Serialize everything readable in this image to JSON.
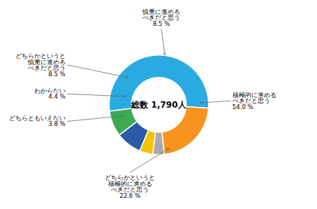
{
  "chart_data": {
    "type": "pie",
    "categories": [
      "積極的に進める\nべきだと思う",
      "どちらかというと\n積極的に進める\nべきだと思う",
      "どちらともいえない",
      "わからない",
      "どちらかというと\n慎重に進める\nべきだと思う",
      "慎重に進める\nべきだと思う"
    ],
    "values": [
      54.0,
      22.6,
      3.8,
      4.4,
      8.5,
      8.5
    ],
    "value_labels": [
      "54.0 %",
      "22.6 %",
      "3.8 %",
      "4.4 %",
      "8.5 %",
      "8.5 %"
    ],
    "colors": [
      "#29ABE2",
      "#F7941D",
      "#AAAAAA",
      "#F5C400",
      "#2A5BA8",
      "#3DAA53"
    ],
    "data_labels": true,
    "annotations": [
      "総数 1,790人"
    ],
    "tick_labels": false
  }
}
